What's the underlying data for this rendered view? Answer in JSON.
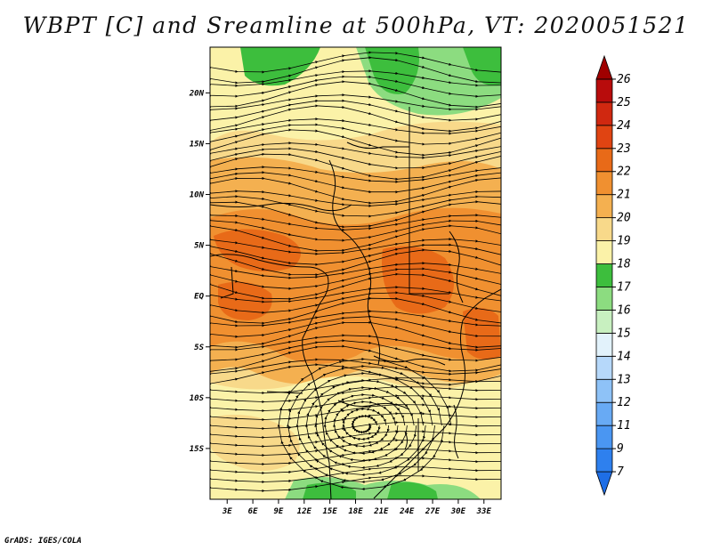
{
  "title": "WBPT [C] and Sreamline at 500hPa, VT: 2020051521",
  "credit": "GrADS: IGES/COLA",
  "map": {
    "lon_range": [
      1,
      35
    ],
    "lat_range": [
      -20,
      24.5
    ],
    "lon_ticks": [
      {
        "value": 3,
        "label": "3E"
      },
      {
        "value": 6,
        "label": "6E"
      },
      {
        "value": 9,
        "label": "9E"
      },
      {
        "value": 12,
        "label": "12E"
      },
      {
        "value": 15,
        "label": "15E"
      },
      {
        "value": 18,
        "label": "18E"
      },
      {
        "value": 21,
        "label": "21E"
      },
      {
        "value": 24,
        "label": "24E"
      },
      {
        "value": 27,
        "label": "27E"
      },
      {
        "value": 30,
        "label": "30E"
      },
      {
        "value": 33,
        "label": "33E"
      }
    ],
    "lat_ticks": [
      {
        "value": 20,
        "label": "20N"
      },
      {
        "value": 15,
        "label": "15N"
      },
      {
        "value": 10,
        "label": "10N"
      },
      {
        "value": 5,
        "label": "5N"
      },
      {
        "value": 0,
        "label": "EQ"
      },
      {
        "value": -5,
        "label": "5S"
      },
      {
        "value": -10,
        "label": "10S"
      },
      {
        "value": -15,
        "label": "15S"
      }
    ]
  },
  "colorbar": {
    "levels": [
      "7",
      "9",
      "11",
      "12",
      "13",
      "14",
      "15",
      "16",
      "17",
      "18",
      "19",
      "20",
      "21",
      "22",
      "23",
      "24",
      "25",
      "26"
    ],
    "colors": [
      "#1e6ee6",
      "#2e80ee",
      "#4a96f2",
      "#68aaf4",
      "#8ec2f7",
      "#b6d8fa",
      "#e2f2fb",
      "#c8f0c0",
      "#8cdc80",
      "#3dbe3d",
      "#fbf2a8",
      "#f8d98a",
      "#f4b050",
      "#f09030",
      "#e86a18",
      "#e04412",
      "#d02810",
      "#b80c0c",
      "#a00000"
    ]
  }
}
